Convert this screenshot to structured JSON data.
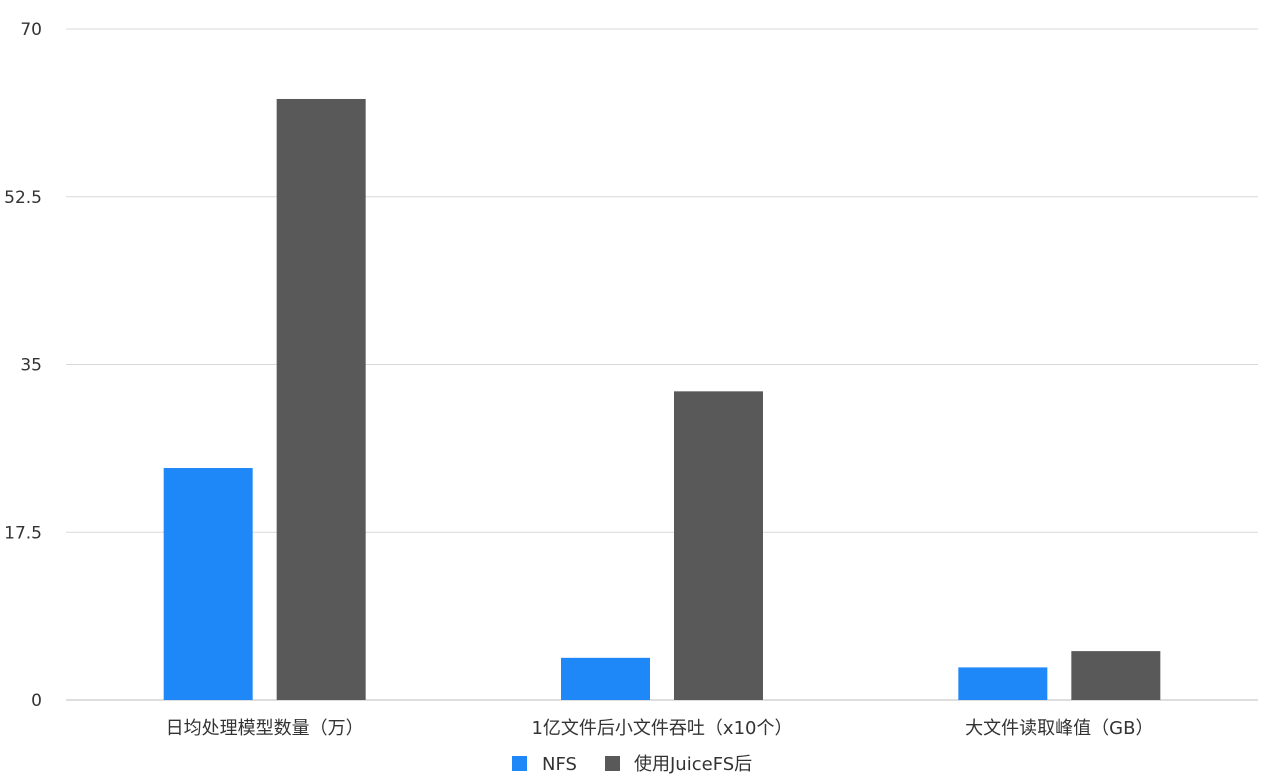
{
  "chart_data": {
    "type": "bar",
    "categories": [
      "日均处理模型数量（万）",
      "1亿文件后小文件吞吐（x10个）",
      "大文件读取峰值（GB）"
    ],
    "series": [
      {
        "name": "NFS",
        "color": "#1f88f8",
        "values": [
          24.2,
          4.4,
          3.4
        ]
      },
      {
        "name": "使用JuiceFS后",
        "color": "#595959",
        "values": [
          62.7,
          32.2,
          5.1
        ]
      }
    ],
    "yticks": [
      "0",
      "17.5",
      "35",
      "52.5",
      "70"
    ],
    "ylim": [
      0,
      70
    ],
    "grid": true,
    "legend_position": "bottom"
  }
}
